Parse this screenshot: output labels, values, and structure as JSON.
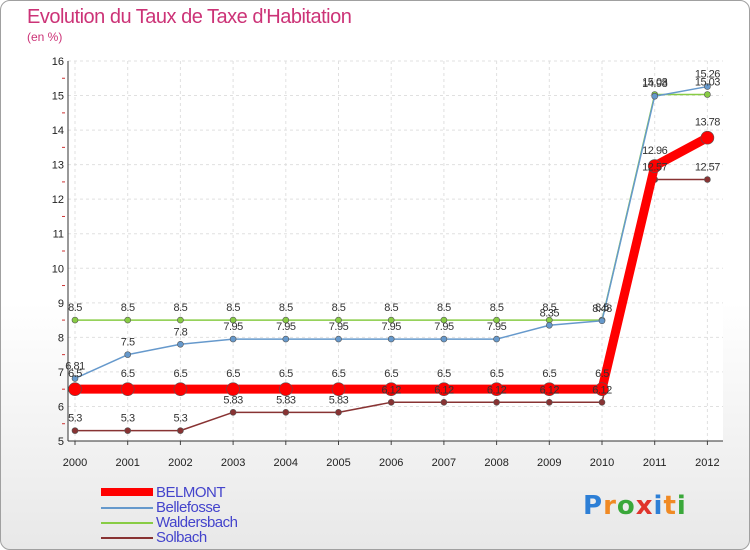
{
  "title": "Evolution du Taux de Taxe d'Habitation",
  "subtitle": "(en %)",
  "logo": {
    "letters": [
      "P",
      "r",
      "o",
      "x",
      "i",
      "t",
      "i"
    ],
    "colors": [
      "#2d7fd6",
      "#f08a24",
      "#3aa83a",
      "#e0342c",
      "#2d7fd6",
      "#f08a24",
      "#3aa83a"
    ]
  },
  "chart_data": {
    "type": "line",
    "title": "Evolution du Taux de Taxe d'Habitation",
    "ylabel": "(en %)",
    "xlabel": "",
    "ylim": [
      5,
      16
    ],
    "yticks": [
      "5",
      "6",
      "7",
      "8",
      "9",
      "10",
      "11",
      "12",
      "13",
      "14",
      "15",
      "16"
    ],
    "x": [
      "2000",
      "2001",
      "2002",
      "2003",
      "2004",
      "2005",
      "2006",
      "2007",
      "2008",
      "2009",
      "2010",
      "2011",
      "2012"
    ],
    "legend_position": "bottom-left",
    "series": [
      {
        "name": "BELMONT",
        "color": "#ff0000",
        "values": [
          6.5,
          6.5,
          6.5,
          6.5,
          6.5,
          6.5,
          6.5,
          6.5,
          6.5,
          6.5,
          6.5,
          12.96,
          13.78
        ],
        "labels": [
          "6.5",
          "6.5",
          "6.5",
          "6.5",
          "6.5",
          "6.5",
          "6.5",
          "6.5",
          "6.5",
          "6.5",
          "6.5",
          "12.96",
          "13.78"
        ]
      },
      {
        "name": "Bellefosse",
        "color": "#6699cc",
        "values": [
          6.81,
          7.5,
          7.8,
          7.95,
          7.95,
          7.95,
          7.95,
          7.95,
          7.95,
          8.35,
          8.48,
          14.98,
          15.26
        ],
        "labels": [
          "6.81",
          "7.5",
          "7.8",
          "7.95",
          "7.95",
          "7.95",
          "7.95",
          "7.95",
          "7.95",
          "8.35",
          "8.48",
          "14.98",
          "15.26"
        ]
      },
      {
        "name": "Waldersbach",
        "color": "#88cc44",
        "values": [
          8.5,
          8.5,
          8.5,
          8.5,
          8.5,
          8.5,
          8.5,
          8.5,
          8.5,
          8.5,
          8.5,
          15.03,
          15.03
        ],
        "labels": [
          "8.5",
          "8.5",
          "8.5",
          "8.5",
          "8.5",
          "8.5",
          "8.5",
          "8.5",
          "8.5",
          "8.5",
          "8.5",
          "15.03",
          "15.03"
        ]
      },
      {
        "name": "Solbach",
        "color": "#883333",
        "values": [
          5.3,
          5.3,
          5.3,
          5.83,
          5.83,
          5.83,
          6.12,
          6.12,
          6.12,
          6.12,
          6.12,
          12.57,
          12.57
        ],
        "labels": [
          "5.3",
          "5.3",
          "5.3",
          "5.83",
          "5.83",
          "5.83",
          "6.12",
          "6.12",
          "6.12",
          "6.12",
          "6.12",
          "12.57",
          "12.57"
        ]
      }
    ]
  }
}
